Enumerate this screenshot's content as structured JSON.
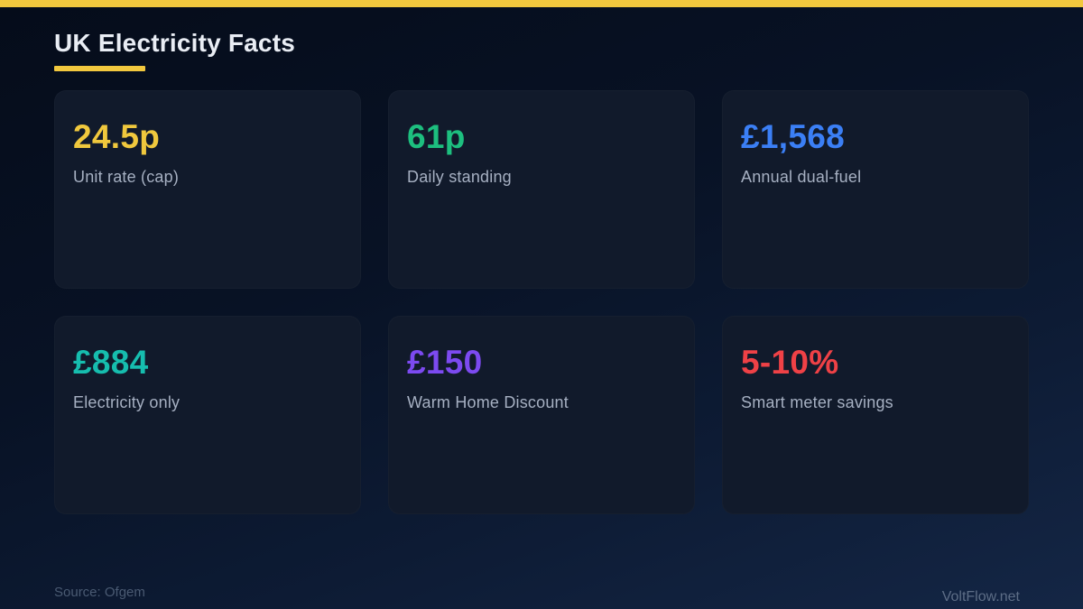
{
  "page": {
    "title": "UK Electricity Facts",
    "accent_color": "#f2c83e",
    "source": "Source: Ofgem",
    "watermark": "VoltFlow.net"
  },
  "cards": [
    {
      "value": "24.5p",
      "label": "Unit rate (cap)",
      "color": "#f0c83d"
    },
    {
      "value": "61p",
      "label": "Daily standing",
      "color": "#1dbf7f"
    },
    {
      "value": "£1,568",
      "label": "Annual dual-fuel",
      "color": "#3b7ff5"
    },
    {
      "value": "£884",
      "label": "Electricity only",
      "color": "#16bdae"
    },
    {
      "value": "£150",
      "label": "Warm Home Discount",
      "color": "#7c4af0"
    },
    {
      "value": "5-10%",
      "label": "Smart meter savings",
      "color": "#ef4146"
    }
  ]
}
